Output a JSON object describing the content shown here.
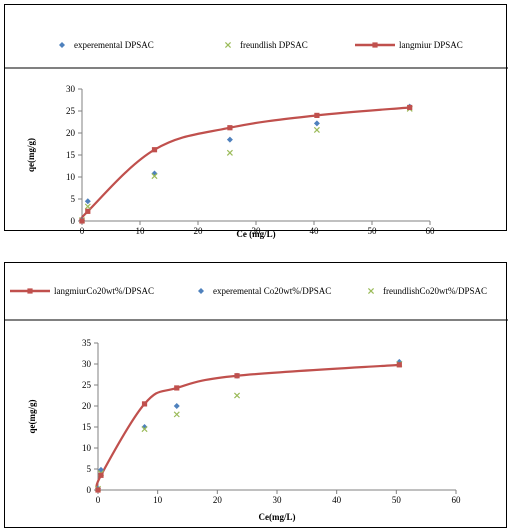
{
  "chart_data": [
    {
      "type": "scatter",
      "title": "",
      "xlabel": "Ce (mg/L)",
      "ylabel": "qe(mg/g)",
      "xlim": [
        0,
        60
      ],
      "ylim": [
        0,
        30
      ],
      "xticks": [
        0,
        10,
        20,
        30,
        40,
        50,
        60
      ],
      "yticks": [
        0,
        5,
        10,
        15,
        20,
        25,
        30
      ],
      "legend_position": "top",
      "legend_order": [
        0,
        1,
        2
      ],
      "series": [
        {
          "name": "experemental DPSAC",
          "kind": "markers",
          "marker": "diamond",
          "color": "#4f81bd",
          "x": [
            0,
            1.0,
            12.5,
            25.5,
            40.5,
            56.5
          ],
          "y": [
            0.2,
            4.5,
            10.8,
            18.5,
            22.2,
            26.0
          ]
        },
        {
          "name": "freundlish DPSAC",
          "kind": "markers",
          "marker": "x",
          "color": "#9bbb59",
          "x": [
            0,
            1.0,
            12.5,
            25.5,
            40.5,
            56.5
          ],
          "y": [
            0.2,
            3.3,
            10.2,
            15.5,
            20.7,
            25.5
          ]
        },
        {
          "name": "langmiur DPSAC",
          "kind": "line",
          "marker": "square",
          "color": "#c0504d",
          "x": [
            0,
            1.0,
            12.5,
            25.5,
            40.5,
            56.5
          ],
          "y": [
            0,
            2.2,
            16.2,
            21.2,
            24.0,
            25.8
          ]
        }
      ]
    },
    {
      "type": "scatter",
      "title": "",
      "xlabel": "Ce(mg/L)",
      "ylabel": "qe(mg/g)",
      "xlim": [
        0,
        60
      ],
      "ylim": [
        0,
        35
      ],
      "xticks": [
        0,
        10,
        20,
        30,
        40,
        50,
        60
      ],
      "yticks": [
        0,
        5,
        10,
        15,
        20,
        25,
        30,
        35
      ],
      "legend_position": "top",
      "legend_order": [
        2,
        0,
        1
      ],
      "series": [
        {
          "name": "experemental Co20wt%/DPSAC",
          "kind": "markers",
          "marker": "diamond",
          "color": "#4f81bd",
          "x": [
            0,
            0.5,
            7.8,
            13.2,
            23.3,
            50.5
          ],
          "y": [
            0.3,
            4.8,
            15.0,
            20.0,
            27.2,
            30.5
          ]
        },
        {
          "name": "freundlishCo20wt%/DPSAC",
          "kind": "markers",
          "marker": "x",
          "color": "#9bbb59",
          "x": [
            0,
            0.5,
            7.8,
            13.2,
            23.3,
            50.5
          ],
          "y": [
            0.3,
            4.0,
            14.5,
            18.0,
            22.5,
            30.0
          ]
        },
        {
          "name": "langmiurCo20wt%/DPSAC",
          "kind": "line",
          "marker": "square",
          "color": "#c0504d",
          "x": [
            0,
            0.5,
            7.8,
            13.2,
            23.3,
            50.5
          ],
          "y": [
            0,
            3.5,
            20.5,
            24.3,
            27.2,
            29.8
          ]
        }
      ]
    }
  ]
}
